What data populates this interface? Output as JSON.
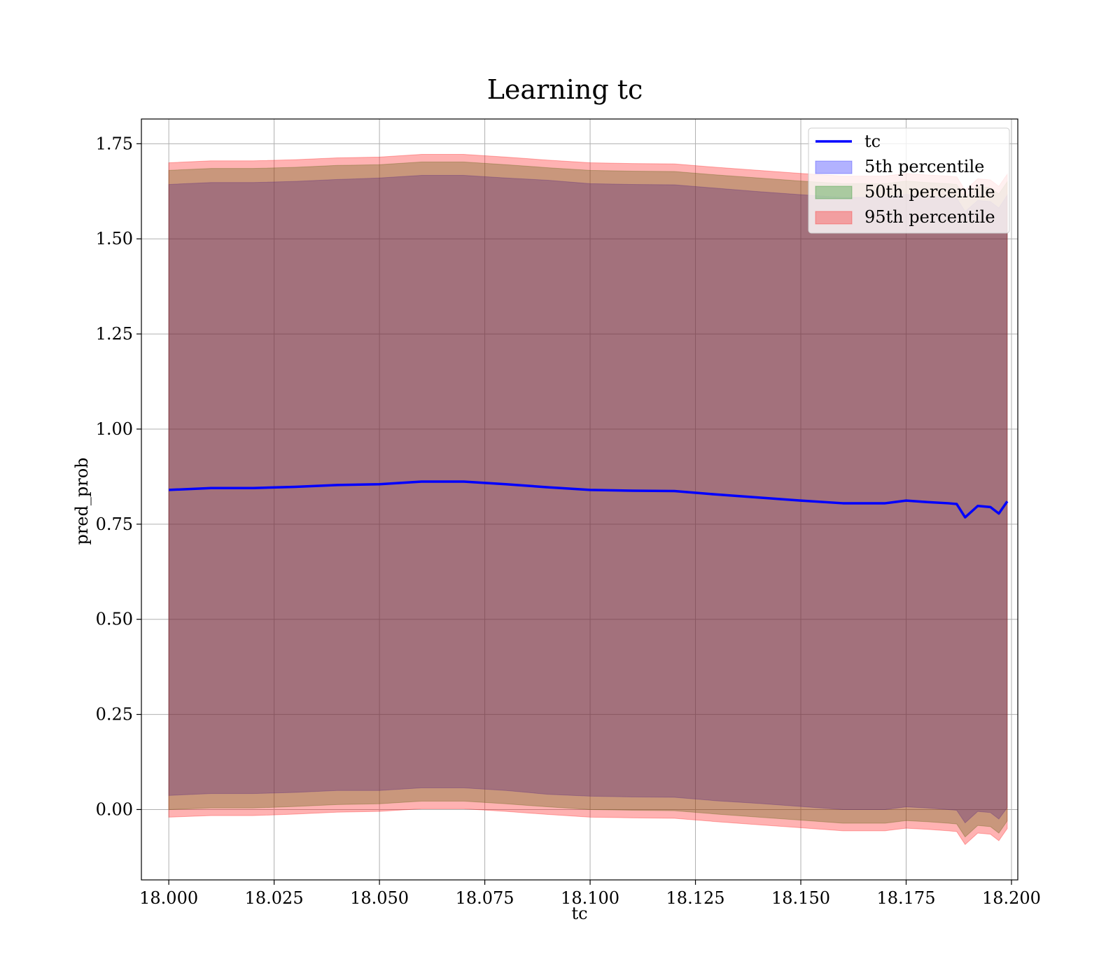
{
  "chart_data": {
    "type": "area",
    "title": "Learning tc",
    "xlabel": "tc",
    "ylabel": "pred_prob",
    "xlim": [
      17.9935,
      18.2015
    ],
    "ylim": [
      -0.185,
      1.815
    ],
    "xticks": [
      18.0,
      18.025,
      18.05,
      18.075,
      18.1,
      18.125,
      18.15,
      18.175,
      18.2
    ],
    "xtick_labels": [
      "18.000",
      "18.025",
      "18.050",
      "18.075",
      "18.100",
      "18.125",
      "18.150",
      "18.175",
      "18.200"
    ],
    "yticks": [
      0.0,
      0.25,
      0.5,
      0.75,
      1.0,
      1.25,
      1.5,
      1.75
    ],
    "ytick_labels": [
      "0.00",
      "0.25",
      "0.50",
      "0.75",
      "1.00",
      "1.25",
      "1.50",
      "1.75"
    ],
    "grid": true,
    "legend_position": "top-right",
    "x": [
      18.0,
      18.01,
      18.02,
      18.03,
      18.04,
      18.05,
      18.06,
      18.07,
      18.08,
      18.09,
      18.1,
      18.11,
      18.12,
      18.13,
      18.14,
      18.15,
      18.16,
      18.17,
      18.175,
      18.18,
      18.185,
      18.187,
      18.189,
      18.192,
      18.195,
      18.197,
      18.199
    ],
    "series": [
      {
        "name": "tc",
        "kind": "line",
        "color": "#0000ff",
        "values": [
          0.84,
          0.845,
          0.845,
          0.848,
          0.853,
          0.855,
          0.862,
          0.862,
          0.855,
          0.847,
          0.84,
          0.838,
          0.837,
          0.828,
          0.82,
          0.812,
          0.805,
          0.805,
          0.812,
          0.808,
          0.805,
          0.803,
          0.768,
          0.798,
          0.795,
          0.778,
          0.81
        ]
      },
      {
        "name": "5th percentile",
        "kind": "band",
        "color": "#0000ff",
        "lower": [
          0.037,
          0.042,
          0.042,
          0.045,
          0.05,
          0.05,
          0.057,
          0.057,
          0.05,
          0.04,
          0.035,
          0.033,
          0.032,
          0.023,
          0.016,
          0.008,
          0.0,
          0.0,
          0.007,
          0.004,
          0.0,
          -0.002,
          -0.035,
          -0.005,
          -0.008,
          -0.025,
          0.005
        ],
        "upper": [
          1.643,
          1.648,
          1.648,
          1.651,
          1.656,
          1.66,
          1.667,
          1.667,
          1.66,
          1.654,
          1.645,
          1.643,
          1.642,
          1.633,
          1.624,
          1.616,
          1.609,
          1.609,
          1.617,
          1.612,
          1.609,
          1.607,
          1.572,
          1.601,
          1.598,
          1.581,
          1.615
        ]
      },
      {
        "name": "50th percentile",
        "kind": "band",
        "color": "#008000",
        "lower": [
          0.0,
          0.004,
          0.004,
          0.008,
          0.013,
          0.015,
          0.022,
          0.022,
          0.015,
          0.007,
          0.0,
          -0.002,
          -0.003,
          -0.012,
          -0.02,
          -0.028,
          -0.036,
          -0.036,
          -0.029,
          -0.032,
          -0.036,
          -0.038,
          -0.072,
          -0.042,
          -0.045,
          -0.062,
          -0.03
        ],
        "upper": [
          1.68,
          1.685,
          1.685,
          1.688,
          1.693,
          1.695,
          1.702,
          1.702,
          1.695,
          1.687,
          1.68,
          1.678,
          1.677,
          1.668,
          1.66,
          1.652,
          1.645,
          1.645,
          1.652,
          1.648,
          1.645,
          1.643,
          1.608,
          1.638,
          1.635,
          1.618,
          1.65
        ]
      },
      {
        "name": "95th percentile",
        "kind": "band",
        "color": "#ff0000",
        "lower": [
          -0.02,
          -0.016,
          -0.016,
          -0.012,
          -0.007,
          -0.005,
          0.002,
          0.002,
          -0.005,
          -0.013,
          -0.02,
          -0.022,
          -0.023,
          -0.032,
          -0.04,
          -0.048,
          -0.056,
          -0.056,
          -0.049,
          -0.052,
          -0.056,
          -0.058,
          -0.092,
          -0.062,
          -0.065,
          -0.082,
          -0.05
        ],
        "upper": [
          1.7,
          1.705,
          1.705,
          1.708,
          1.713,
          1.715,
          1.722,
          1.722,
          1.715,
          1.707,
          1.7,
          1.698,
          1.697,
          1.688,
          1.68,
          1.672,
          1.665,
          1.665,
          1.672,
          1.668,
          1.665,
          1.663,
          1.628,
          1.658,
          1.655,
          1.638,
          1.67
        ]
      }
    ],
    "legend": [
      "tc",
      "5th percentile",
      "50th percentile",
      "95th percentile"
    ]
  }
}
